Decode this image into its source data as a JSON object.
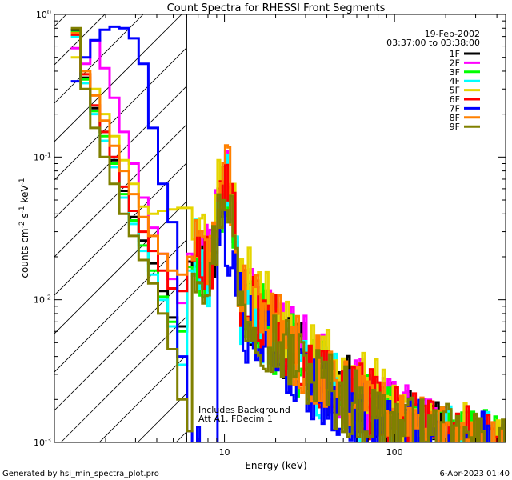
{
  "chart_data": {
    "type": "line",
    "title": "Count Spectra for RHESSI Front Segments",
    "xlabel": "Energy (keV)",
    "ylabel": "counts cm",
    "ylabel_sup1": "-2",
    "ylabel_mid": " s",
    "ylabel_sup2": "-1",
    "ylabel_end": " keV",
    "ylabel_sup3": "-1",
    "x_scale": "log",
    "y_scale": "log",
    "xlim": [
      1,
      450
    ],
    "ylim": [
      0.001,
      1
    ],
    "x_ticks": [
      {
        "value": 10,
        "label": "10"
      },
      {
        "value": 100,
        "label": "100"
      }
    ],
    "y_ticks": [
      {
        "value": 0.001,
        "base": "10",
        "exp": "-3"
      },
      {
        "value": 0.01,
        "base": "10",
        "exp": "-2"
      },
      {
        "value": 0.1,
        "base": "10",
        "exp": "-1"
      },
      {
        "value": 1,
        "base": "10",
        "exp": "0"
      }
    ],
    "date": "19-Feb-2002",
    "time_range": "03:37:00 to 03:38:00",
    "hatched_region_xmax": 6,
    "annotation_line1": "Includes Background",
    "annotation_line2": "Att A1, FDecim 1",
    "legend_position": "top-right",
    "series": [
      {
        "name": "1F",
        "color": "#000000",
        "seed": 11,
        "low": [
          0.78,
          0.36,
          0.22,
          0.15,
          0.095,
          0.058,
          0.038,
          0.026,
          0.018,
          0.0115,
          0.0075,
          0.0065,
          0.0185
        ],
        "peak": 0.055,
        "tail": 0.013
      },
      {
        "name": "2F",
        "color": "#ff00ff",
        "seed": 23,
        "low": [
          0.58,
          0.45,
          0.65,
          0.42,
          0.26,
          0.15,
          0.09,
          0.052,
          0.032,
          0.021,
          0.014,
          0.0095,
          0.021
        ],
        "peak": 0.062,
        "tail": 0.015
      },
      {
        "name": "3F",
        "color": "#00ff00",
        "seed": 37,
        "low": [
          0.75,
          0.35,
          0.21,
          0.14,
          0.09,
          0.055,
          0.036,
          0.024,
          0.016,
          0.0105,
          0.007,
          0.006,
          0.017
        ],
        "peak": 0.052,
        "tail": 0.012
      },
      {
        "name": "4F",
        "color": "#00ffff",
        "seed": 41,
        "low": [
          0.7,
          0.33,
          0.2,
          0.13,
          0.085,
          0.052,
          0.034,
          0.022,
          0.015,
          0.01,
          0.0065,
          0.0035,
          0.016
        ],
        "peak": 0.05,
        "tail": 0.011
      },
      {
        "name": "5F",
        "color": "#e5d500",
        "seed": 53,
        "low": [
          0.5,
          0.38,
          0.3,
          0.2,
          0.14,
          0.095,
          0.065,
          0.045,
          0.04,
          0.042,
          0.043,
          0.044,
          0.044
        ],
        "peak": 0.08,
        "tail": 0.02
      },
      {
        "name": "6F",
        "color": "#ff0000",
        "seed": 67,
        "low": [
          0.72,
          0.38,
          0.23,
          0.15,
          0.1,
          0.062,
          0.042,
          0.03,
          0.022,
          0.016,
          0.012,
          0.0115,
          0.02
        ],
        "peak": 0.058,
        "tail": 0.014
      },
      {
        "name": "7F",
        "color": "#0000ff",
        "seed": 79,
        "low": [
          0.34,
          0.5,
          0.66,
          0.78,
          0.82,
          0.8,
          0.68,
          0.45,
          0.16,
          0.065,
          0.035,
          0.004,
          0.0012
        ],
        "peak": 0.02,
        "tail": 0.009
      },
      {
        "name": "8F",
        "color": "#ff8000",
        "seed": 83,
        "low": [
          0.74,
          0.4,
          0.27,
          0.18,
          0.12,
          0.08,
          0.055,
          0.038,
          0.028,
          0.021,
          0.016,
          0.015,
          0.02
        ],
        "peak": 0.06,
        "tail": 0.014
      },
      {
        "name": "9F",
        "color": "#808000",
        "seed": 97,
        "low": [
          0.8,
          0.3,
          0.16,
          0.1,
          0.065,
          0.04,
          0.028,
          0.019,
          0.013,
          0.008,
          0.0045,
          0.002,
          0.0012
        ],
        "peak": 0.05,
        "tail": 0.011
      }
    ]
  },
  "footer": {
    "generated_by": "Generated by hsi_min_spectra_plot.pro",
    "timestamp": "6-Apr-2023 01:40"
  }
}
